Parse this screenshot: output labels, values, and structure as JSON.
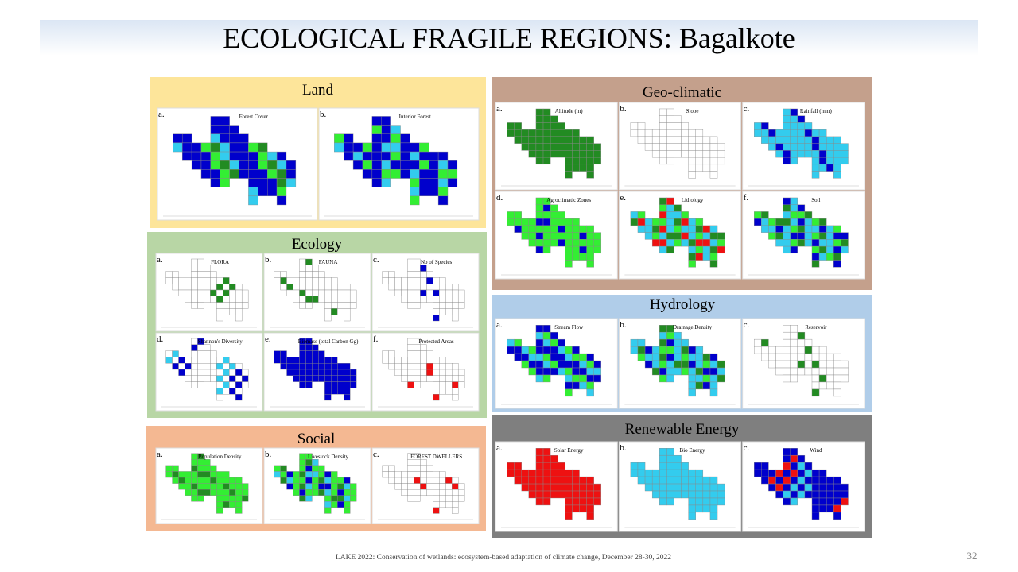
{
  "title": "ECOLOGICAL FRAGILE REGIONS: Bagalkote",
  "panels": [
    {
      "title": "Land",
      "maps": [
        {
          "letter": "a.",
          "title": "Forest Cover"
        },
        {
          "letter": "b.",
          "title": "Interior Forest"
        }
      ]
    },
    {
      "title": "Ecology",
      "maps": [
        {
          "letter": "a.",
          "title": "FLORA"
        },
        {
          "letter": "b.",
          "title": "FAUNA"
        },
        {
          "letter": "c.",
          "title": "No of Species"
        },
        {
          "letter": "d.",
          "title": "Shannon's Diversity"
        },
        {
          "letter": "e.",
          "title": "Biomass (total Carbon Gg)"
        },
        {
          "letter": "f.",
          "title": "Protected Areas"
        }
      ]
    },
    {
      "title": "Social",
      "maps": [
        {
          "letter": "a.",
          "title": "Population Density"
        },
        {
          "letter": "b.",
          "title": "Livestock Density"
        },
        {
          "letter": "c.",
          "title": "FOREST DWELLERS"
        }
      ]
    },
    {
      "title": "Geo-climatic",
      "maps": [
        {
          "letter": "a.",
          "title": "Altitude (m)"
        },
        {
          "letter": "b.",
          "title": "Slope"
        },
        {
          "letter": "c.",
          "title": "Rainfall (mm)"
        },
        {
          "letter": "d.",
          "title": "Agroclimatic Zones"
        },
        {
          "letter": "e.",
          "title": "Lithology"
        },
        {
          "letter": "f.",
          "title": "Soil"
        }
      ]
    },
    {
      "title": "Hydrology",
      "maps": [
        {
          "letter": "a.",
          "title": "Stream Flow"
        },
        {
          "letter": "b.",
          "title": "Drainage Density"
        },
        {
          "letter": "c.",
          "title": "Reservoir"
        }
      ]
    },
    {
      "title": "Renewable Energy",
      "maps": [
        {
          "letter": "a.",
          "title": "Solar Energy"
        },
        {
          "letter": "b.",
          "title": "Bio Energy"
        },
        {
          "letter": "c.",
          "title": "Wind"
        }
      ]
    }
  ],
  "footer": "LAKE 2022: Conservation of wetlands: ecosystem-based adaptation of climate change, December 28-30, 2022",
  "page_number": "32"
}
